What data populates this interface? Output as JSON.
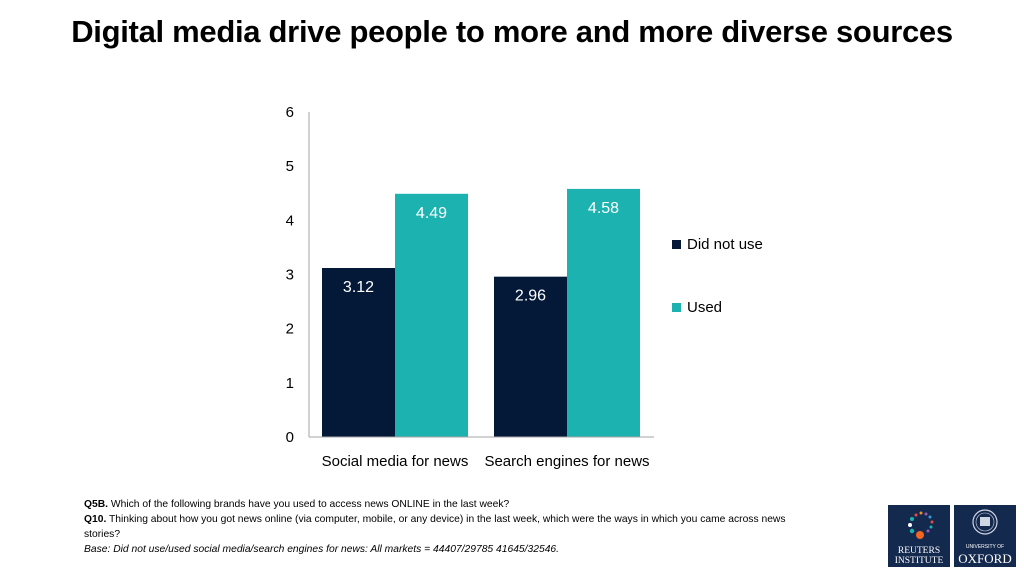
{
  "title": "Digital media drive people to more and more diverse sources",
  "chart_data": {
    "type": "bar",
    "title": "Digital media drive people to more and more diverse sources",
    "categories": [
      "Social media for news",
      "Search engines for news"
    ],
    "series": [
      {
        "name": "Did not use",
        "color": "#041838",
        "values": [
          3.12,
          2.96
        ]
      },
      {
        "name": "Used",
        "color": "#1cb2b0",
        "values": [
          4.49,
          4.58
        ]
      }
    ],
    "ylim": [
      0,
      6
    ],
    "yticks": [
      0,
      1,
      2,
      3,
      4,
      5,
      6
    ],
    "xlabel": "",
    "ylabel": "",
    "grid": false,
    "legend_position": "right"
  },
  "notes": {
    "q5b_label": "Q5B.",
    "q5b_text": " Which of the following brands have you used to access news ONLINE in the last week?",
    "q10_label": "Q10.",
    "q10_text": " Thinking about how you got news online (via computer, mobile, or any device) in the last week, which were the ways in which you came across news stories?",
    "base": "Base: Did not use/used social media/search engines for news: All markets = 44407/29785 41645/32546."
  },
  "logos": {
    "reuters_line1": "REUTERS",
    "reuters_line2": "INSTITUTE",
    "oxford_line1": "UNIVERSITY OF",
    "oxford_line2": "OXFORD"
  }
}
